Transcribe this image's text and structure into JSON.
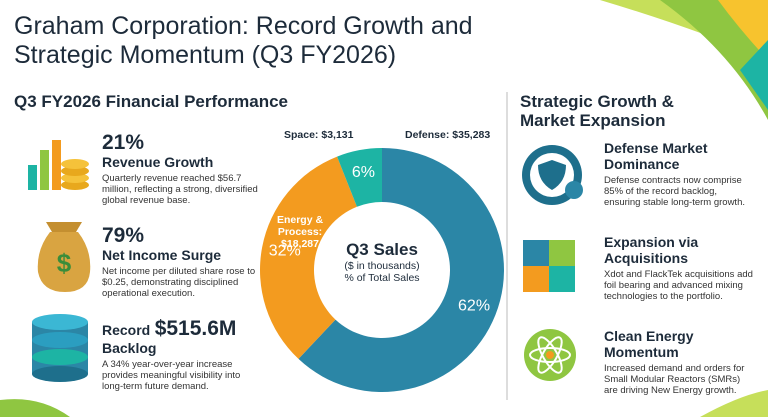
{
  "title": "Graham Corporation: Record Growth and Strategic Momentum (Q3 FY2026)",
  "financial": {
    "heading": "Q3 FY2026 Financial Performance",
    "items": [
      {
        "figure": "21%",
        "label": "Revenue Growth",
        "text": "Quarterly revenue reached $56.7 million, reflecting a strong, diversified global revenue base."
      },
      {
        "figure": "79%",
        "label": "Net Income Surge",
        "text": "Net income per diluted share rose to $0.25, demonstrating disciplined operational execution."
      },
      {
        "prefix": "Record",
        "figure": "$515.6M",
        "label": "Backlog",
        "text": "A 34% year-over-year increase provides meaningful visibility into long-term future demand."
      }
    ]
  },
  "chart_data": {
    "type": "donut",
    "title": "Q3 Sales",
    "subtitle": "($ in thousands)",
    "note": "% of Total Sales",
    "categories": [
      "Defense: $35,283",
      "Energy & Process: $18,287",
      "Space: $3,131"
    ],
    "values": [
      62,
      32,
      6
    ],
    "value_labels": [
      "62%",
      "32%",
      "6%"
    ],
    "colors": [
      "#2b86a6",
      "#f39b1f",
      "#1db4a4"
    ]
  },
  "strategy": {
    "heading": "Strategic Growth & Market Expansion",
    "items": [
      {
        "title": "Defense Market Dominance",
        "text": "Defense contracts now comprise 85% of the record backlog, ensuring stable long-term growth."
      },
      {
        "title": "Expansion via Acquisitions",
        "text": "Xdot and FlackTek acquisitions add foil bearing and advanced mixing technologies to the portfolio."
      },
      {
        "title": "Clean Energy Momentum",
        "text": "Increased demand and orders for Small Modular Reactors (SMRs) are driving New Energy growth."
      }
    ]
  }
}
